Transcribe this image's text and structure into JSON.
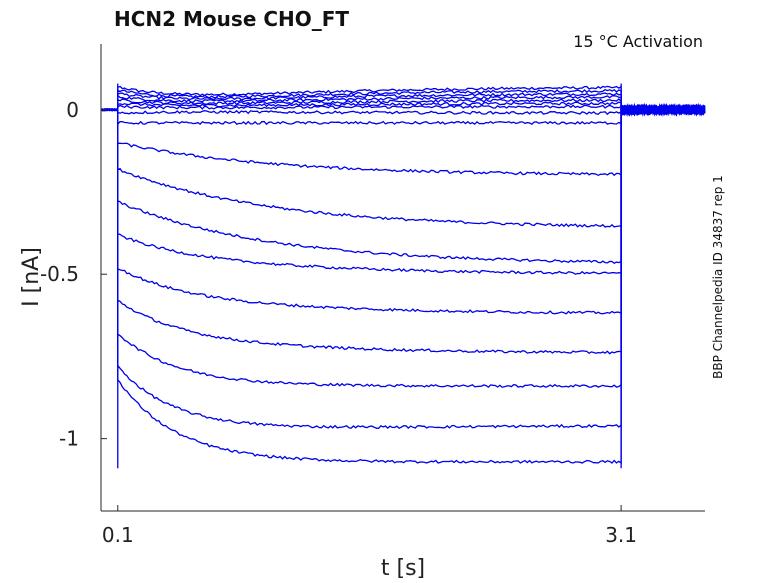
{
  "chart_data": {
    "type": "line",
    "title": "HCN2  Mouse  CHO_FT",
    "subtitle": "15 °C  Activation",
    "side_note": "BBP Channelpedia ID 34837 rep 1",
    "xlabel": "t [s]",
    "ylabel": "I [nA]",
    "xlim": [
      0.0,
      3.6
    ],
    "ylim": [
      -1.22,
      0.2
    ],
    "xticks": [
      {
        "value": 0.1,
        "label": "0.1"
      },
      {
        "value": 3.1,
        "label": "3.1"
      }
    ],
    "yticks": [
      {
        "value": 0,
        "label": "0"
      },
      {
        "value": -0.5,
        "label": "-0.5"
      },
      {
        "value": -1,
        "label": "-1"
      }
    ],
    "line_color": "#0000ee",
    "grid": false,
    "step_start": 0.1,
    "step_end": 3.1,
    "series": [
      {
        "peak": 0.07,
        "sag": 0.0,
        "end": 0.07
      },
      {
        "peak": 0.06,
        "sag": 0.0,
        "end": 0.06
      },
      {
        "peak": 0.05,
        "sag": 0.0,
        "end": 0.05
      },
      {
        "peak": 0.04,
        "sag": 0.0,
        "end": 0.04
      },
      {
        "peak": 0.03,
        "sag": 0.0,
        "end": 0.03
      },
      {
        "peak": 0.02,
        "sag": 0.0,
        "end": 0.02
      },
      {
        "peak": 0.01,
        "sag": 0.0,
        "end": 0.01
      },
      {
        "peak": -0.01,
        "sag": 0.0,
        "end": -0.01
      },
      {
        "peak": -0.04,
        "sag": -0.04,
        "end": -0.04
      },
      {
        "peak": -0.1,
        "sag": -0.1,
        "end": -0.2
      },
      {
        "peak": -0.18,
        "sag": -0.18,
        "end": -0.36
      },
      {
        "peak": -0.28,
        "sag": -0.28,
        "end": -0.47
      },
      {
        "peak": -0.38,
        "sag": -0.42,
        "end": -0.5
      },
      {
        "peak": -0.48,
        "sag": -0.55,
        "end": -0.62
      },
      {
        "peak": -0.58,
        "sag": -0.68,
        "end": -0.74
      },
      {
        "peak": -0.68,
        "sag": -0.84,
        "end": -0.84
      },
      {
        "peak": -0.78,
        "sag": -1.0,
        "end": -0.96
      },
      {
        "peak": -0.82,
        "sag": -1.08,
        "end": -1.07
      }
    ]
  }
}
